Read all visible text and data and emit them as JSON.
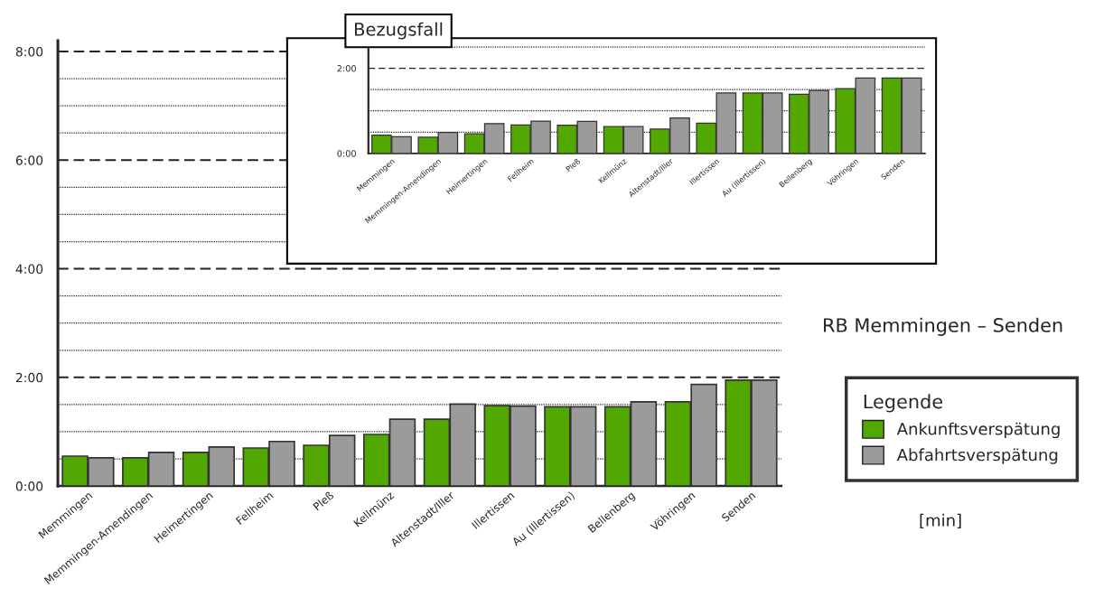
{
  "chart_data": [
    {
      "type": "bar",
      "legend_title": "Legende",
      "legend": "right",
      "grid": "y",
      "annotations": [
        "RB Memmingen – Senden",
        "[min]"
      ],
      "categories": [
        "Memmingen",
        "Memmingen-Amendingen",
        "Heimertingen",
        "Fellheim",
        "Pleß",
        "Kellmünz",
        "Altenstadt/Iller",
        "Illertissen",
        "Au (Illertissen)",
        "Bellenberg",
        "Vöhringen",
        "Senden"
      ],
      "series": [
        {
          "name": "Ankunftsverspätung",
          "color": "#52a800",
          "values": [
            0.55,
            0.52,
            0.62,
            0.7,
            0.75,
            0.95,
            1.23,
            1.48,
            1.46,
            1.46,
            1.55,
            1.95
          ]
        },
        {
          "name": "Abfahrtsverspätung",
          "color": "#9b9b9b",
          "values": [
            0.52,
            0.62,
            0.72,
            0.82,
            0.93,
            1.23,
            1.51,
            1.47,
            1.46,
            1.55,
            1.87,
            1.95
          ]
        }
      ],
      "ylim": [
        0,
        8.2
      ],
      "yticks": [
        {
          "value": 0,
          "label": "0:00"
        },
        {
          "value": 0.5,
          "label": null
        },
        {
          "value": 1,
          "label": null
        },
        {
          "value": 1.5,
          "label": null
        },
        {
          "value": 2,
          "label": "2:00"
        },
        {
          "value": 2.5,
          "label": null
        },
        {
          "value": 3,
          "label": null
        },
        {
          "value": 3.5,
          "label": null
        },
        {
          "value": 4,
          "label": "4:00"
        },
        {
          "value": 4.5,
          "label": null
        },
        {
          "value": 5,
          "label": null
        },
        {
          "value": 5.5,
          "label": null
        },
        {
          "value": 6,
          "label": "6:00"
        },
        {
          "value": 6.5,
          "label": null
        },
        {
          "value": 7,
          "label": null
        },
        {
          "value": 7.5,
          "label": null
        },
        {
          "value": 8,
          "label": "8:00"
        }
      ]
    },
    {
      "type": "bar",
      "title": "Bezugsfall",
      "grid": "y",
      "categories": [
        "Memmingen",
        "Memmingen-Amendingen",
        "Heimertingen",
        "Fellheim",
        "Pleß",
        "Kellmünz",
        "Altenstadt/Iller",
        "Illertissen",
        "Au (Illertissen)",
        "Bellenberg",
        "Vöhringen",
        "Senden"
      ],
      "series": [
        {
          "color": "#52a800",
          "values": [
            0.43,
            0.38,
            0.46,
            0.67,
            0.66,
            0.63,
            0.57,
            0.71,
            1.42,
            1.39,
            1.52,
            1.77
          ]
        },
        {
          "color": "#9b9b9b",
          "values": [
            0.39,
            0.49,
            0.7,
            0.76,
            0.75,
            0.63,
            0.83,
            1.42,
            1.42,
            1.48,
            1.77,
            1.77
          ]
        }
      ],
      "ylim": [
        0,
        2.65
      ],
      "yticks": [
        {
          "value": 0,
          "label": "0:00"
        },
        {
          "value": 0.5,
          "label": null
        },
        {
          "value": 1,
          "label": null
        },
        {
          "value": 1.5,
          "label": null
        },
        {
          "value": 2,
          "label": "2:00"
        },
        {
          "value": 2.5,
          "label": null
        }
      ]
    }
  ]
}
